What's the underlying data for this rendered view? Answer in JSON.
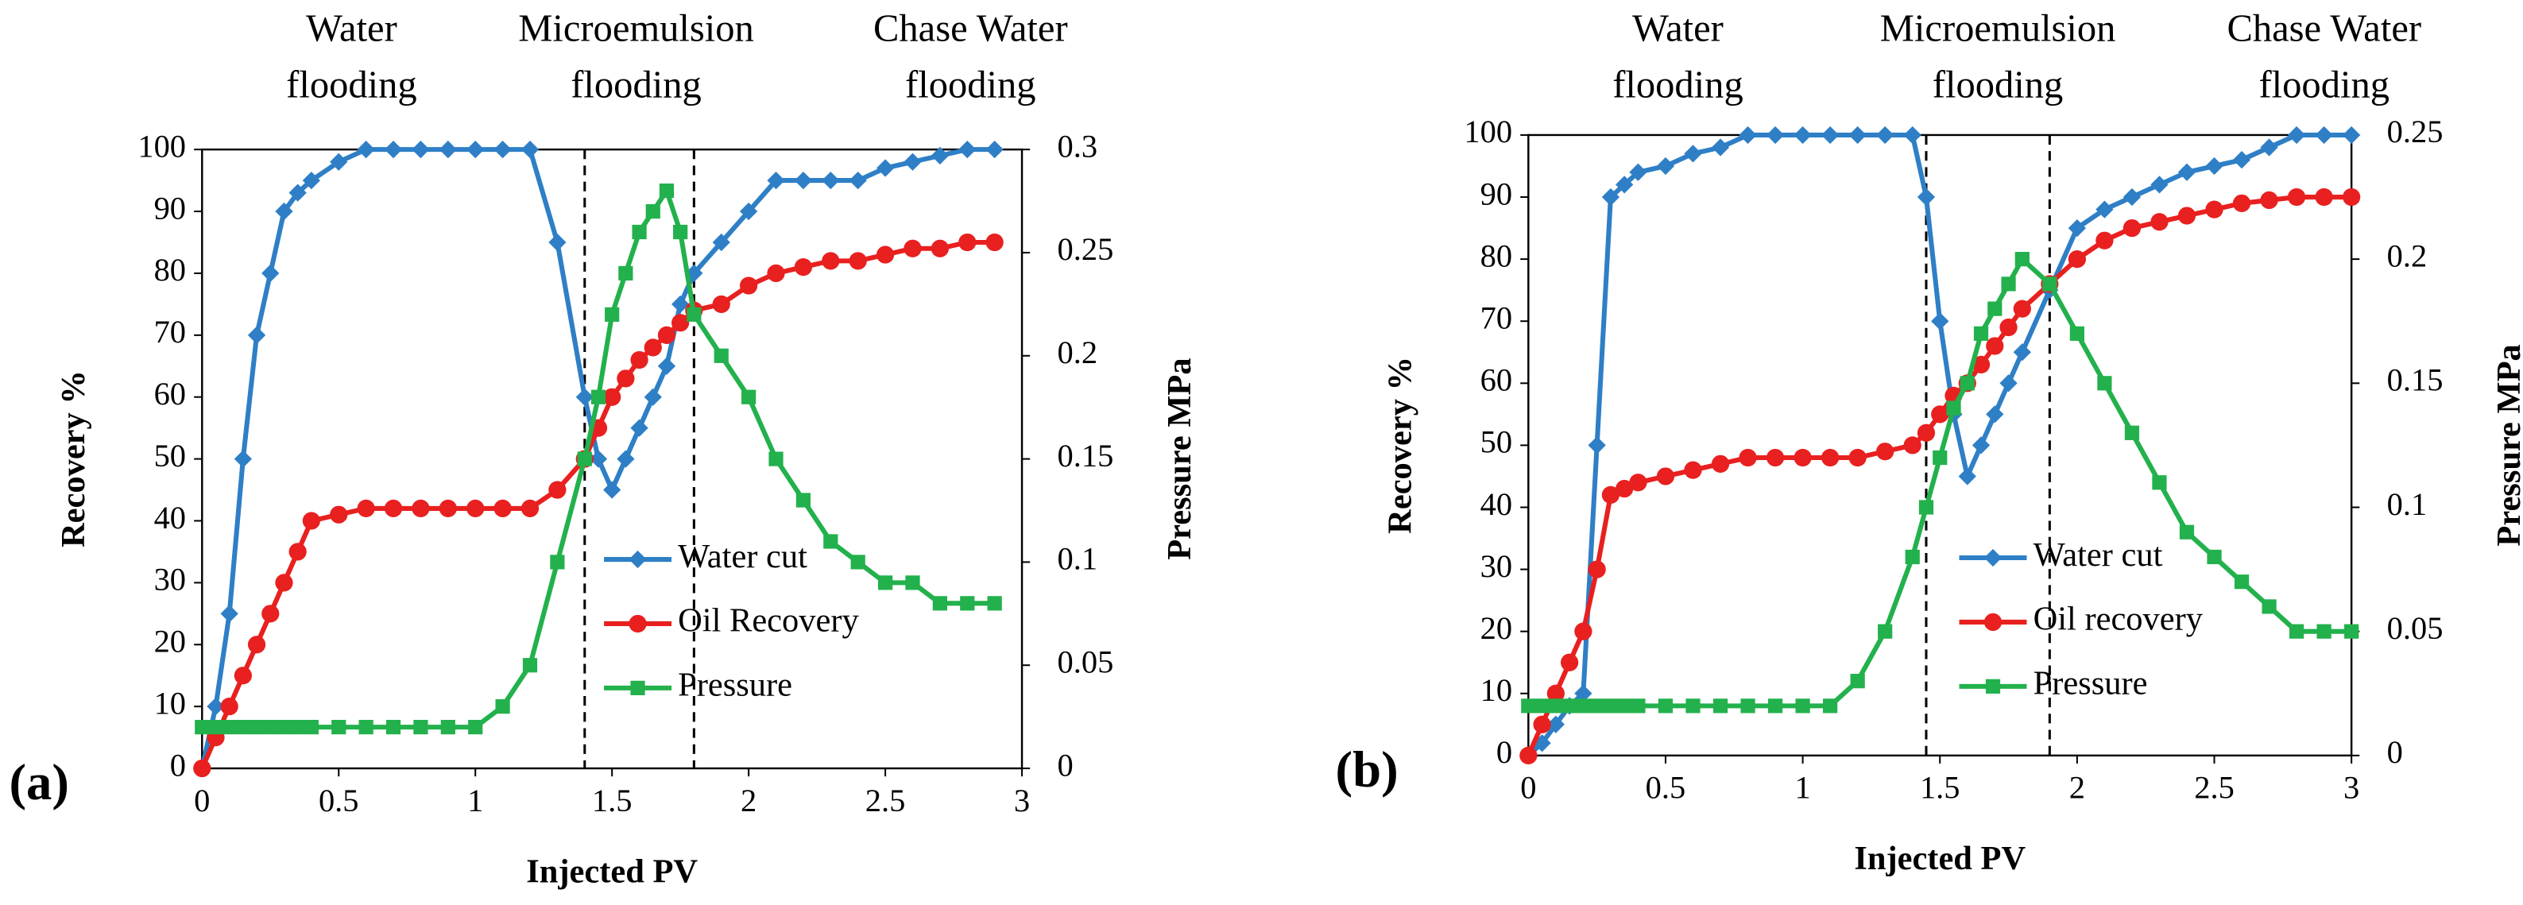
{
  "chart_data": [
    {
      "type": "line",
      "panel_label": "(a)",
      "xlabel": "Injected PV",
      "ylabel": "Recovery %",
      "y2label": "Pressure MPa",
      "xlim": [
        0,
        3
      ],
      "xticks": [
        0,
        0.5,
        1,
        1.5,
        2,
        2.5,
        3
      ],
      "ylim": [
        0,
        100
      ],
      "yticks": [
        0,
        10,
        20,
        30,
        40,
        50,
        60,
        70,
        80,
        90,
        100
      ],
      "y2lim": [
        0,
        0.3
      ],
      "y2ticks": [
        0,
        0.05,
        0.1,
        0.15,
        0.2,
        0.25,
        0.3
      ],
      "vlines": [
        1.4,
        1.8
      ],
      "annotations": [
        [
          "Water",
          "flooding"
        ],
        [
          "Microemulsion",
          "flooding"
        ],
        [
          "Chase Water",
          "flooding"
        ]
      ],
      "x": [
        0,
        0.05,
        0.1,
        0.15,
        0.2,
        0.25,
        0.3,
        0.35,
        0.4,
        0.5,
        0.6,
        0.7,
        0.8,
        0.9,
        1.0,
        1.1,
        1.2,
        1.3,
        1.4,
        1.45,
        1.5,
        1.55,
        1.6,
        1.65,
        1.7,
        1.75,
        1.8,
        1.9,
        2.0,
        2.1,
        2.2,
        2.3,
        2.4,
        2.5,
        2.6,
        2.7,
        2.8,
        2.9
      ],
      "series": [
        {
          "name": "Water cut",
          "color": "#2e7fc6",
          "marker": "diamond",
          "values": [
            0,
            10,
            25,
            50,
            70,
            80,
            90,
            93,
            95,
            98,
            100,
            100,
            100,
            100,
            100,
            100,
            100,
            85,
            60,
            50,
            45,
            50,
            55,
            60,
            65,
            75,
            80,
            85,
            90,
            95,
            95,
            95,
            95,
            97,
            98,
            99,
            100,
            100
          ]
        },
        {
          "name": "Oil Recovery",
          "color": "#e8201f",
          "marker": "circle",
          "values": [
            0,
            5,
            10,
            15,
            20,
            25,
            30,
            35,
            40,
            41,
            42,
            42,
            42,
            42,
            42,
            42,
            42,
            45,
            50,
            55,
            60,
            63,
            66,
            68,
            70,
            72,
            74,
            75,
            78,
            80,
            81,
            82,
            82,
            83,
            84,
            84,
            85,
            85
          ]
        },
        {
          "name": "Pressure",
          "color": "#22b14c",
          "marker": "square",
          "axis": "y2",
          "values": [
            0.02,
            0.02,
            0.02,
            0.02,
            0.02,
            0.02,
            0.02,
            0.02,
            0.02,
            0.02,
            0.02,
            0.02,
            0.02,
            0.02,
            0.02,
            0.03,
            0.05,
            0.1,
            0.15,
            0.18,
            0.22,
            0.24,
            0.26,
            0.27,
            0.28,
            0.26,
            0.22,
            0.2,
            0.18,
            0.15,
            0.13,
            0.11,
            0.1,
            0.09,
            0.09,
            0.08,
            0.08,
            0.08
          ]
        }
      ]
    },
    {
      "type": "line",
      "panel_label": "(b)",
      "xlabel": "Injected PV",
      "ylabel": "Recovery %",
      "y2label": "Pressure MPa",
      "xlim": [
        0,
        3
      ],
      "xticks": [
        0,
        0.5,
        1,
        1.5,
        2,
        2.5,
        3
      ],
      "ylim": [
        0,
        100
      ],
      "yticks": [
        0,
        10,
        20,
        30,
        40,
        50,
        60,
        70,
        80,
        90,
        100
      ],
      "y2lim": [
        0,
        0.25
      ],
      "y2ticks": [
        0,
        0.05,
        0.1,
        0.15,
        0.2,
        0.25
      ],
      "vlines": [
        1.45,
        1.9
      ],
      "annotations": [
        [
          "Water",
          "flooding"
        ],
        [
          "Microemulsion",
          "flooding"
        ],
        [
          "Chase Water",
          "flooding"
        ]
      ],
      "x": [
        0,
        0.05,
        0.1,
        0.15,
        0.2,
        0.25,
        0.3,
        0.35,
        0.4,
        0.5,
        0.6,
        0.7,
        0.8,
        0.9,
        1.0,
        1.1,
        1.2,
        1.3,
        1.4,
        1.45,
        1.5,
        1.55,
        1.6,
        1.65,
        1.7,
        1.75,
        1.8,
        1.9,
        2.0,
        2.1,
        2.2,
        2.3,
        2.4,
        2.5,
        2.6,
        2.7,
        2.8,
        2.9,
        3.0
      ],
      "series": [
        {
          "name": "Water cut",
          "color": "#2e7fc6",
          "marker": "diamond",
          "values": [
            0,
            2,
            5,
            8,
            10,
            50,
            90,
            92,
            94,
            95,
            97,
            98,
            100,
            100,
            100,
            100,
            100,
            100,
            100,
            90,
            70,
            55,
            45,
            50,
            55,
            60,
            65,
            75,
            85,
            88,
            90,
            92,
            94,
            95,
            96,
            98,
            100,
            100,
            100
          ]
        },
        {
          "name": "Oil recovery",
          "color": "#e8201f",
          "marker": "circle",
          "values": [
            0,
            5,
            10,
            15,
            20,
            30,
            42,
            43,
            44,
            45,
            46,
            47,
            48,
            48,
            48,
            48,
            48,
            49,
            50,
            52,
            55,
            58,
            60,
            63,
            66,
            69,
            72,
            76,
            80,
            83,
            85,
            86,
            87,
            88,
            89,
            89.5,
            90,
            90,
            90
          ]
        },
        {
          "name": "Pressure",
          "color": "#22b14c",
          "marker": "square",
          "axis": "y2",
          "values": [
            0.02,
            0.02,
            0.02,
            0.02,
            0.02,
            0.02,
            0.02,
            0.02,
            0.02,
            0.02,
            0.02,
            0.02,
            0.02,
            0.02,
            0.02,
            0.02,
            0.03,
            0.05,
            0.08,
            0.1,
            0.12,
            0.14,
            0.15,
            0.17,
            0.18,
            0.19,
            0.2,
            0.19,
            0.17,
            0.15,
            0.13,
            0.11,
            0.09,
            0.08,
            0.07,
            0.06,
            0.05,
            0.05,
            0.05
          ]
        }
      ]
    }
  ]
}
